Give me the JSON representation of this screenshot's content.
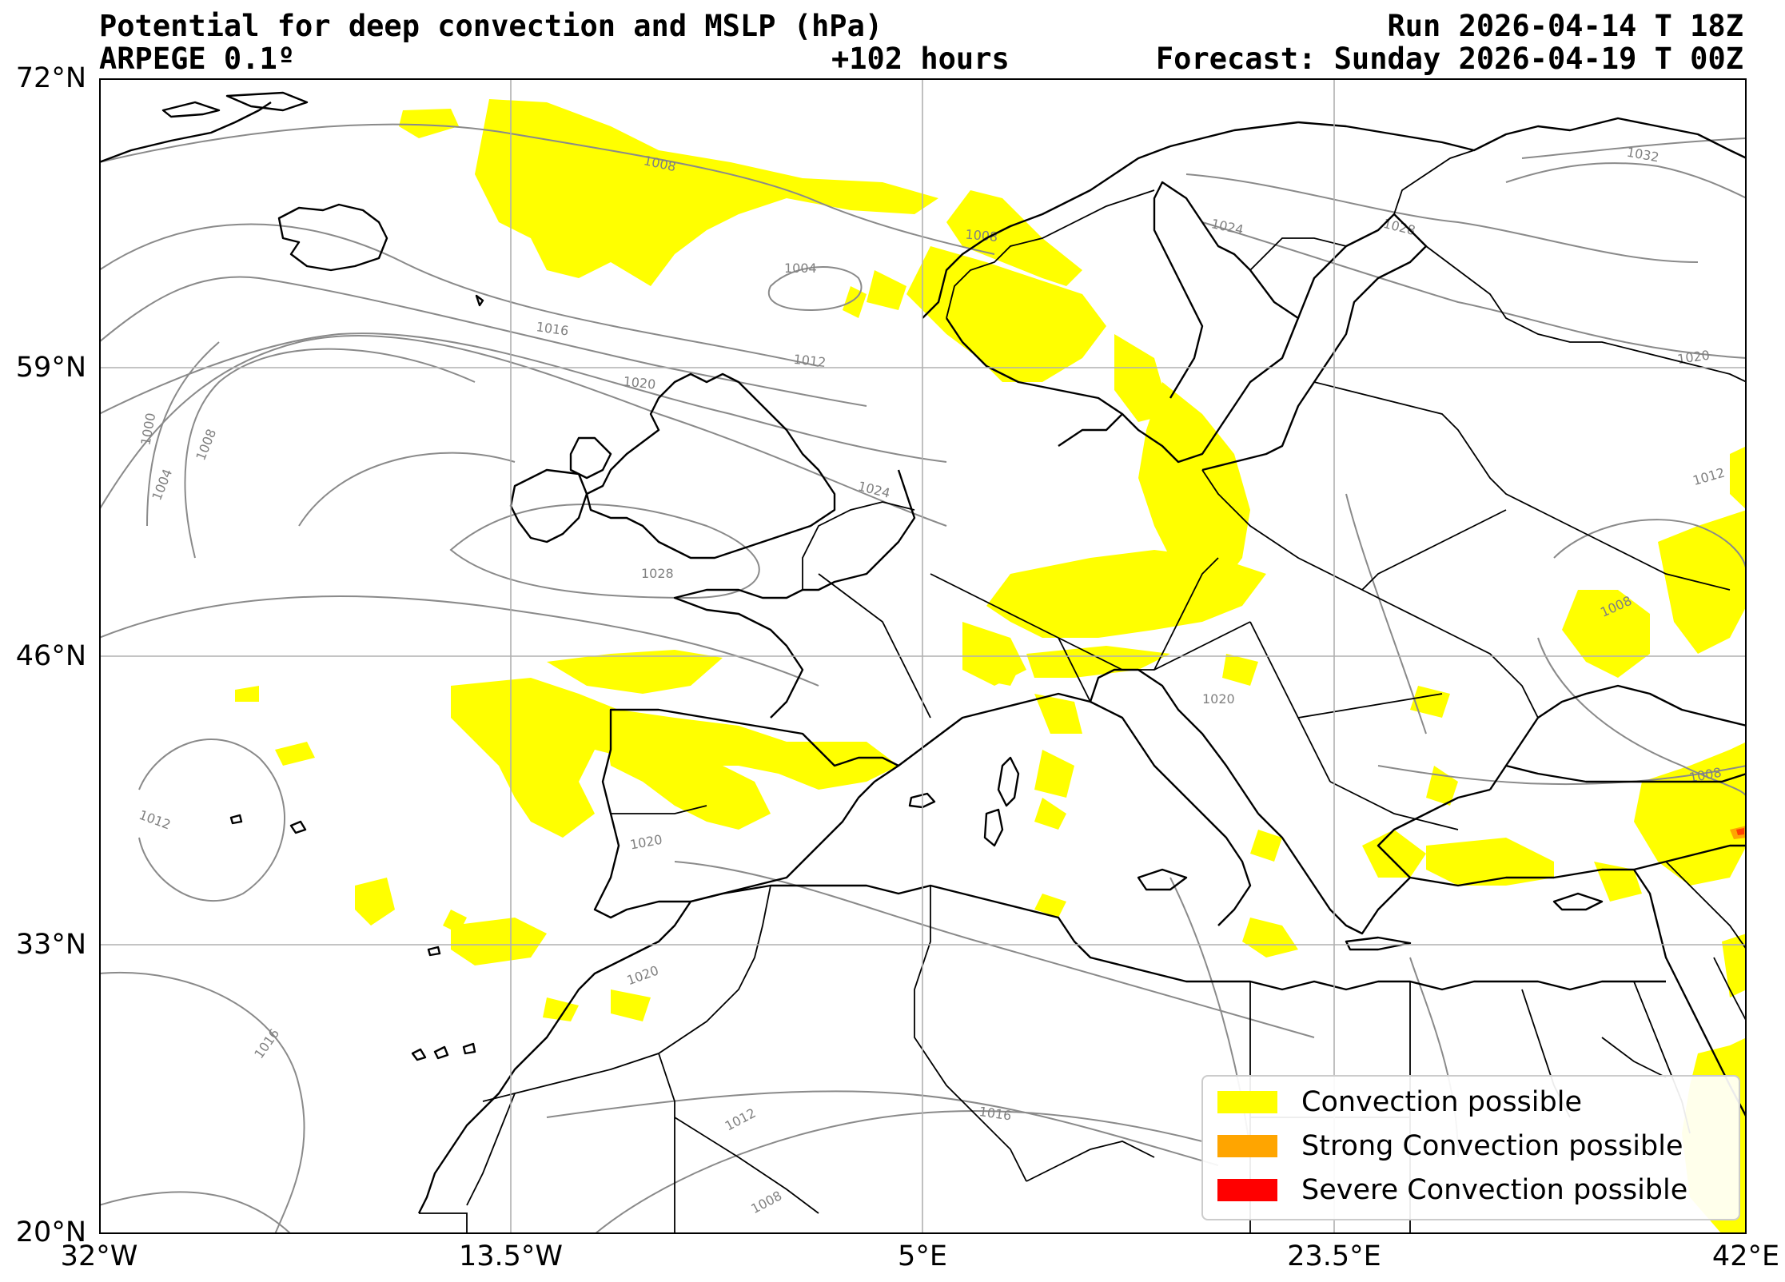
{
  "header": {
    "title": "Potential for deep convection and MSLP (hPa)",
    "model": "ARPEGE 0.1º",
    "lead_time": "+102 hours",
    "run": "Run 2026-04-14 T 18Z",
    "forecast": "Forecast: Sunday 2026-04-19 T 00Z"
  },
  "axes": {
    "lat_labels": [
      "72°N",
      "59°N",
      "46°N",
      "33°N",
      "20°N"
    ],
    "lon_labels": [
      "32°W",
      "13.5°W",
      "5°E",
      "23.5°E",
      "42°E"
    ]
  },
  "legend": [
    {
      "label": "Convection possible",
      "color": "#ffff00"
    },
    {
      "label": "Strong Convection possible",
      "color": "#ffa500"
    },
    {
      "label": "Severe Convection possible",
      "color": "#ff0000"
    }
  ],
  "isobar_labels": [
    "1000",
    "1004",
    "1008",
    "1012",
    "1016",
    "1020",
    "1024",
    "1028",
    "1032"
  ],
  "colors": {
    "isobar": "#8a8a8a",
    "coast": "#000000",
    "grid": "#b0b0b0"
  }
}
